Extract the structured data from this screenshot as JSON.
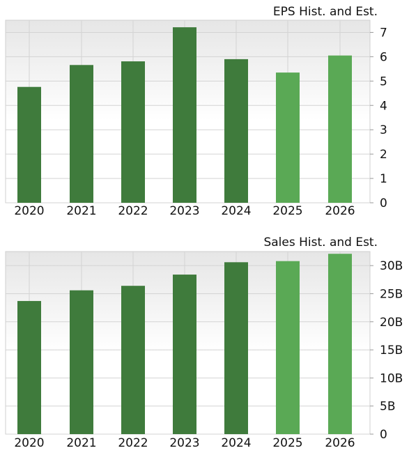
{
  "chart_data": [
    {
      "type": "bar",
      "title": "EPS Hist. and Est.",
      "categories": [
        "2020",
        "2021",
        "2022",
        "2023",
        "2024",
        "2025",
        "2026"
      ],
      "values": [
        4.76,
        5.66,
        5.81,
        7.21,
        5.9,
        5.35,
        6.05
      ],
      "estimate_flags": [
        false,
        false,
        false,
        false,
        false,
        true,
        true
      ],
      "ylim": [
        0,
        7.5
      ],
      "yticks": [
        0,
        1,
        2,
        3,
        4,
        5,
        6,
        7
      ],
      "ytick_labels": [
        "0",
        "1",
        "2",
        "3",
        "4",
        "5",
        "6",
        "7"
      ],
      "grid": true,
      "y_axis_side": "right",
      "colors": {
        "historical": "#3f7b3c",
        "estimate": "#5aa955"
      }
    },
    {
      "type": "bar",
      "title": "Sales Hist. and Est.",
      "categories": [
        "2020",
        "2021",
        "2022",
        "2023",
        "2024",
        "2025",
        "2026"
      ],
      "values": [
        23.7,
        25.6,
        26.4,
        28.4,
        30.6,
        30.8,
        32.1
      ],
      "estimate_flags": [
        false,
        false,
        false,
        false,
        false,
        true,
        true
      ],
      "ylim": [
        0,
        32.5
      ],
      "yticks": [
        0,
        5,
        10,
        15,
        20,
        25,
        30
      ],
      "ytick_labels": [
        "0",
        "5B",
        "10B",
        "15B",
        "20B",
        "25B",
        "30B"
      ],
      "grid": true,
      "y_axis_side": "right",
      "colors": {
        "historical": "#3f7b3c",
        "estimate": "#5aa955"
      }
    }
  ]
}
